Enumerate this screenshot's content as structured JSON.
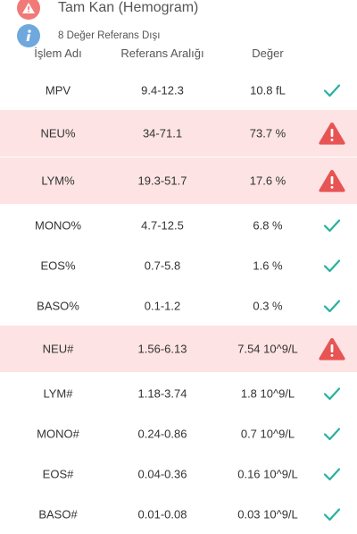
{
  "header": {
    "title": "Tam Kan (Hemogram)",
    "subtitle": "8 Değer Referans Dışı",
    "title_icon": "warning-triangle-icon",
    "subtitle_icon": "info-icon"
  },
  "columns": {
    "name": "İşlem Adı",
    "range": "Referans Aralığı",
    "value": "Değer"
  },
  "colors": {
    "alert_bg": "#fde3e3",
    "alert_icon": "#e85454",
    "ok_icon": "#26b1a0",
    "info_icon": "#6fa8dc"
  },
  "rows": [
    {
      "name": "MPV",
      "range": "9.4-12.3",
      "value": "10.8 fL",
      "status": "ok"
    },
    {
      "name": "NEU%",
      "range": "34-71.1",
      "value": "73.7 %",
      "status": "alert"
    },
    {
      "name": "LYM%",
      "range": "19.3-51.7",
      "value": "17.6 %",
      "status": "alert"
    },
    {
      "name": "MONO%",
      "range": "4.7-12.5",
      "value": "6.8 %",
      "status": "ok"
    },
    {
      "name": "EOS%",
      "range": "0.7-5.8",
      "value": "1.6 %",
      "status": "ok"
    },
    {
      "name": "BASO%",
      "range": "0.1-1.2",
      "value": "0.3 %",
      "status": "ok"
    },
    {
      "name": "NEU#",
      "range": "1.56-6.13",
      "value": "7.54 10^9/L",
      "status": "alert"
    },
    {
      "name": "LYM#",
      "range": "1.18-3.74",
      "value": "1.8 10^9/L",
      "status": "ok"
    },
    {
      "name": "MONO#",
      "range": "0.24-0.86",
      "value": "0.7 10^9/L",
      "status": "ok"
    },
    {
      "name": "EOS#",
      "range": "0.04-0.36",
      "value": "0.16 10^9/L",
      "status": "ok"
    },
    {
      "name": "BASO#",
      "range": "0.01-0.08",
      "value": "0.03 10^9/L",
      "status": "ok"
    }
  ]
}
